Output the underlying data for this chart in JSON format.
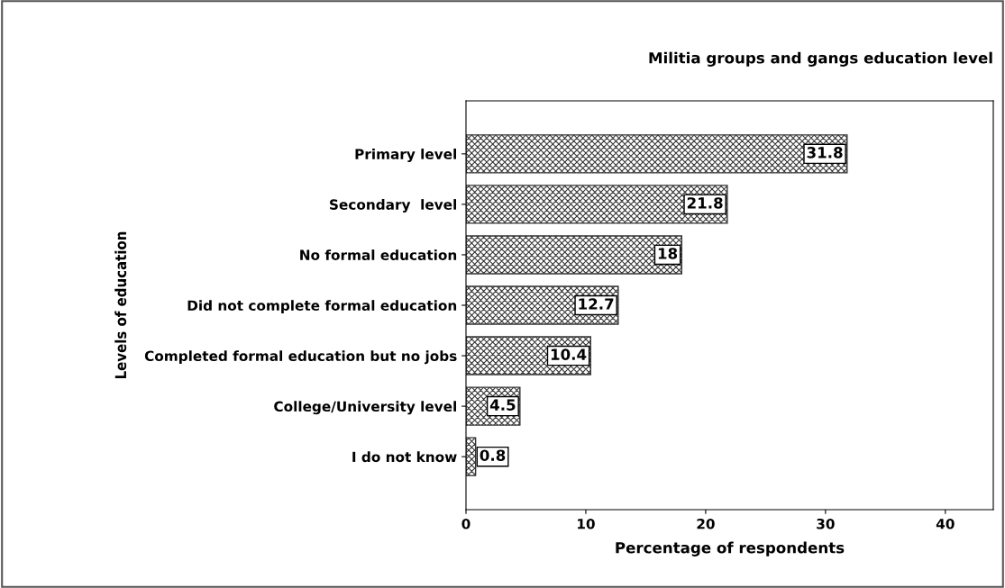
{
  "chart_data": {
    "type": "bar",
    "orientation": "horizontal",
    "title": "Militia groups and gangs education level",
    "xlabel": "Percentage of respondents",
    "ylabel": "Levels of education",
    "categories": [
      "Primary level",
      "Secondary  level",
      "No formal education",
      "Did not complete formal education",
      "Completed formal education but no jobs",
      "College/University level",
      "I do not know"
    ],
    "values": [
      31.8,
      21.8,
      18,
      12.7,
      10.4,
      4.5,
      0.8
    ],
    "color": "#333333",
    "xlim": [
      0,
      44
    ],
    "xticks": [
      0,
      10,
      20,
      30,
      40
    ],
    "data_labels": true,
    "grid": false,
    "legend": false
  }
}
